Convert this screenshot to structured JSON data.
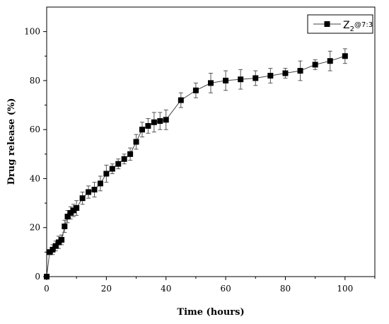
{
  "chart_data": {
    "type": "line",
    "xlabel": "Time (hours)",
    "ylabel": "Drug release (%)",
    "xlim": [
      0,
      110
    ],
    "ylim": [
      0,
      110
    ],
    "xticks": [
      0,
      20,
      40,
      60,
      80,
      100
    ],
    "yticks": [
      0,
      20,
      40,
      60,
      80,
      100
    ],
    "legend": {
      "position": "top-right",
      "label_main": "Z",
      "label_sub": "2",
      "label_rest": "@7:3"
    },
    "series": [
      {
        "name": "Z2@7:3",
        "marker": "square",
        "color": "#000000",
        "x": [
          0,
          1,
          2,
          3,
          4,
          5,
          6,
          7,
          8,
          9,
          10,
          12,
          14,
          16,
          18,
          20,
          22,
          24,
          26,
          28,
          30,
          32,
          34,
          36,
          38,
          40,
          45,
          50,
          55,
          60,
          65,
          70,
          75,
          80,
          85,
          90,
          95,
          100
        ],
        "y": [
          0,
          10,
          11,
          12.5,
          14,
          15,
          20.5,
          24.5,
          26,
          27,
          28,
          32,
          34.5,
          35.5,
          38,
          42,
          44,
          46,
          48,
          50,
          55,
          60,
          61.5,
          63,
          63.5,
          64,
          72,
          76,
          79,
          80,
          80.5,
          81,
          82,
          83,
          84,
          86.5,
          88,
          90
        ],
        "error": [
          0,
          1,
          2,
          2,
          2.5,
          2,
          2.5,
          2.5,
          2.5,
          2.5,
          3,
          2.5,
          2.5,
          3,
          3,
          3.5,
          2,
          2,
          2,
          2.5,
          3,
          3,
          3,
          4,
          3.5,
          4,
          3,
          3,
          4,
          4,
          4,
          3,
          3,
          2,
          4,
          2,
          4,
          3
        ]
      }
    ]
  }
}
